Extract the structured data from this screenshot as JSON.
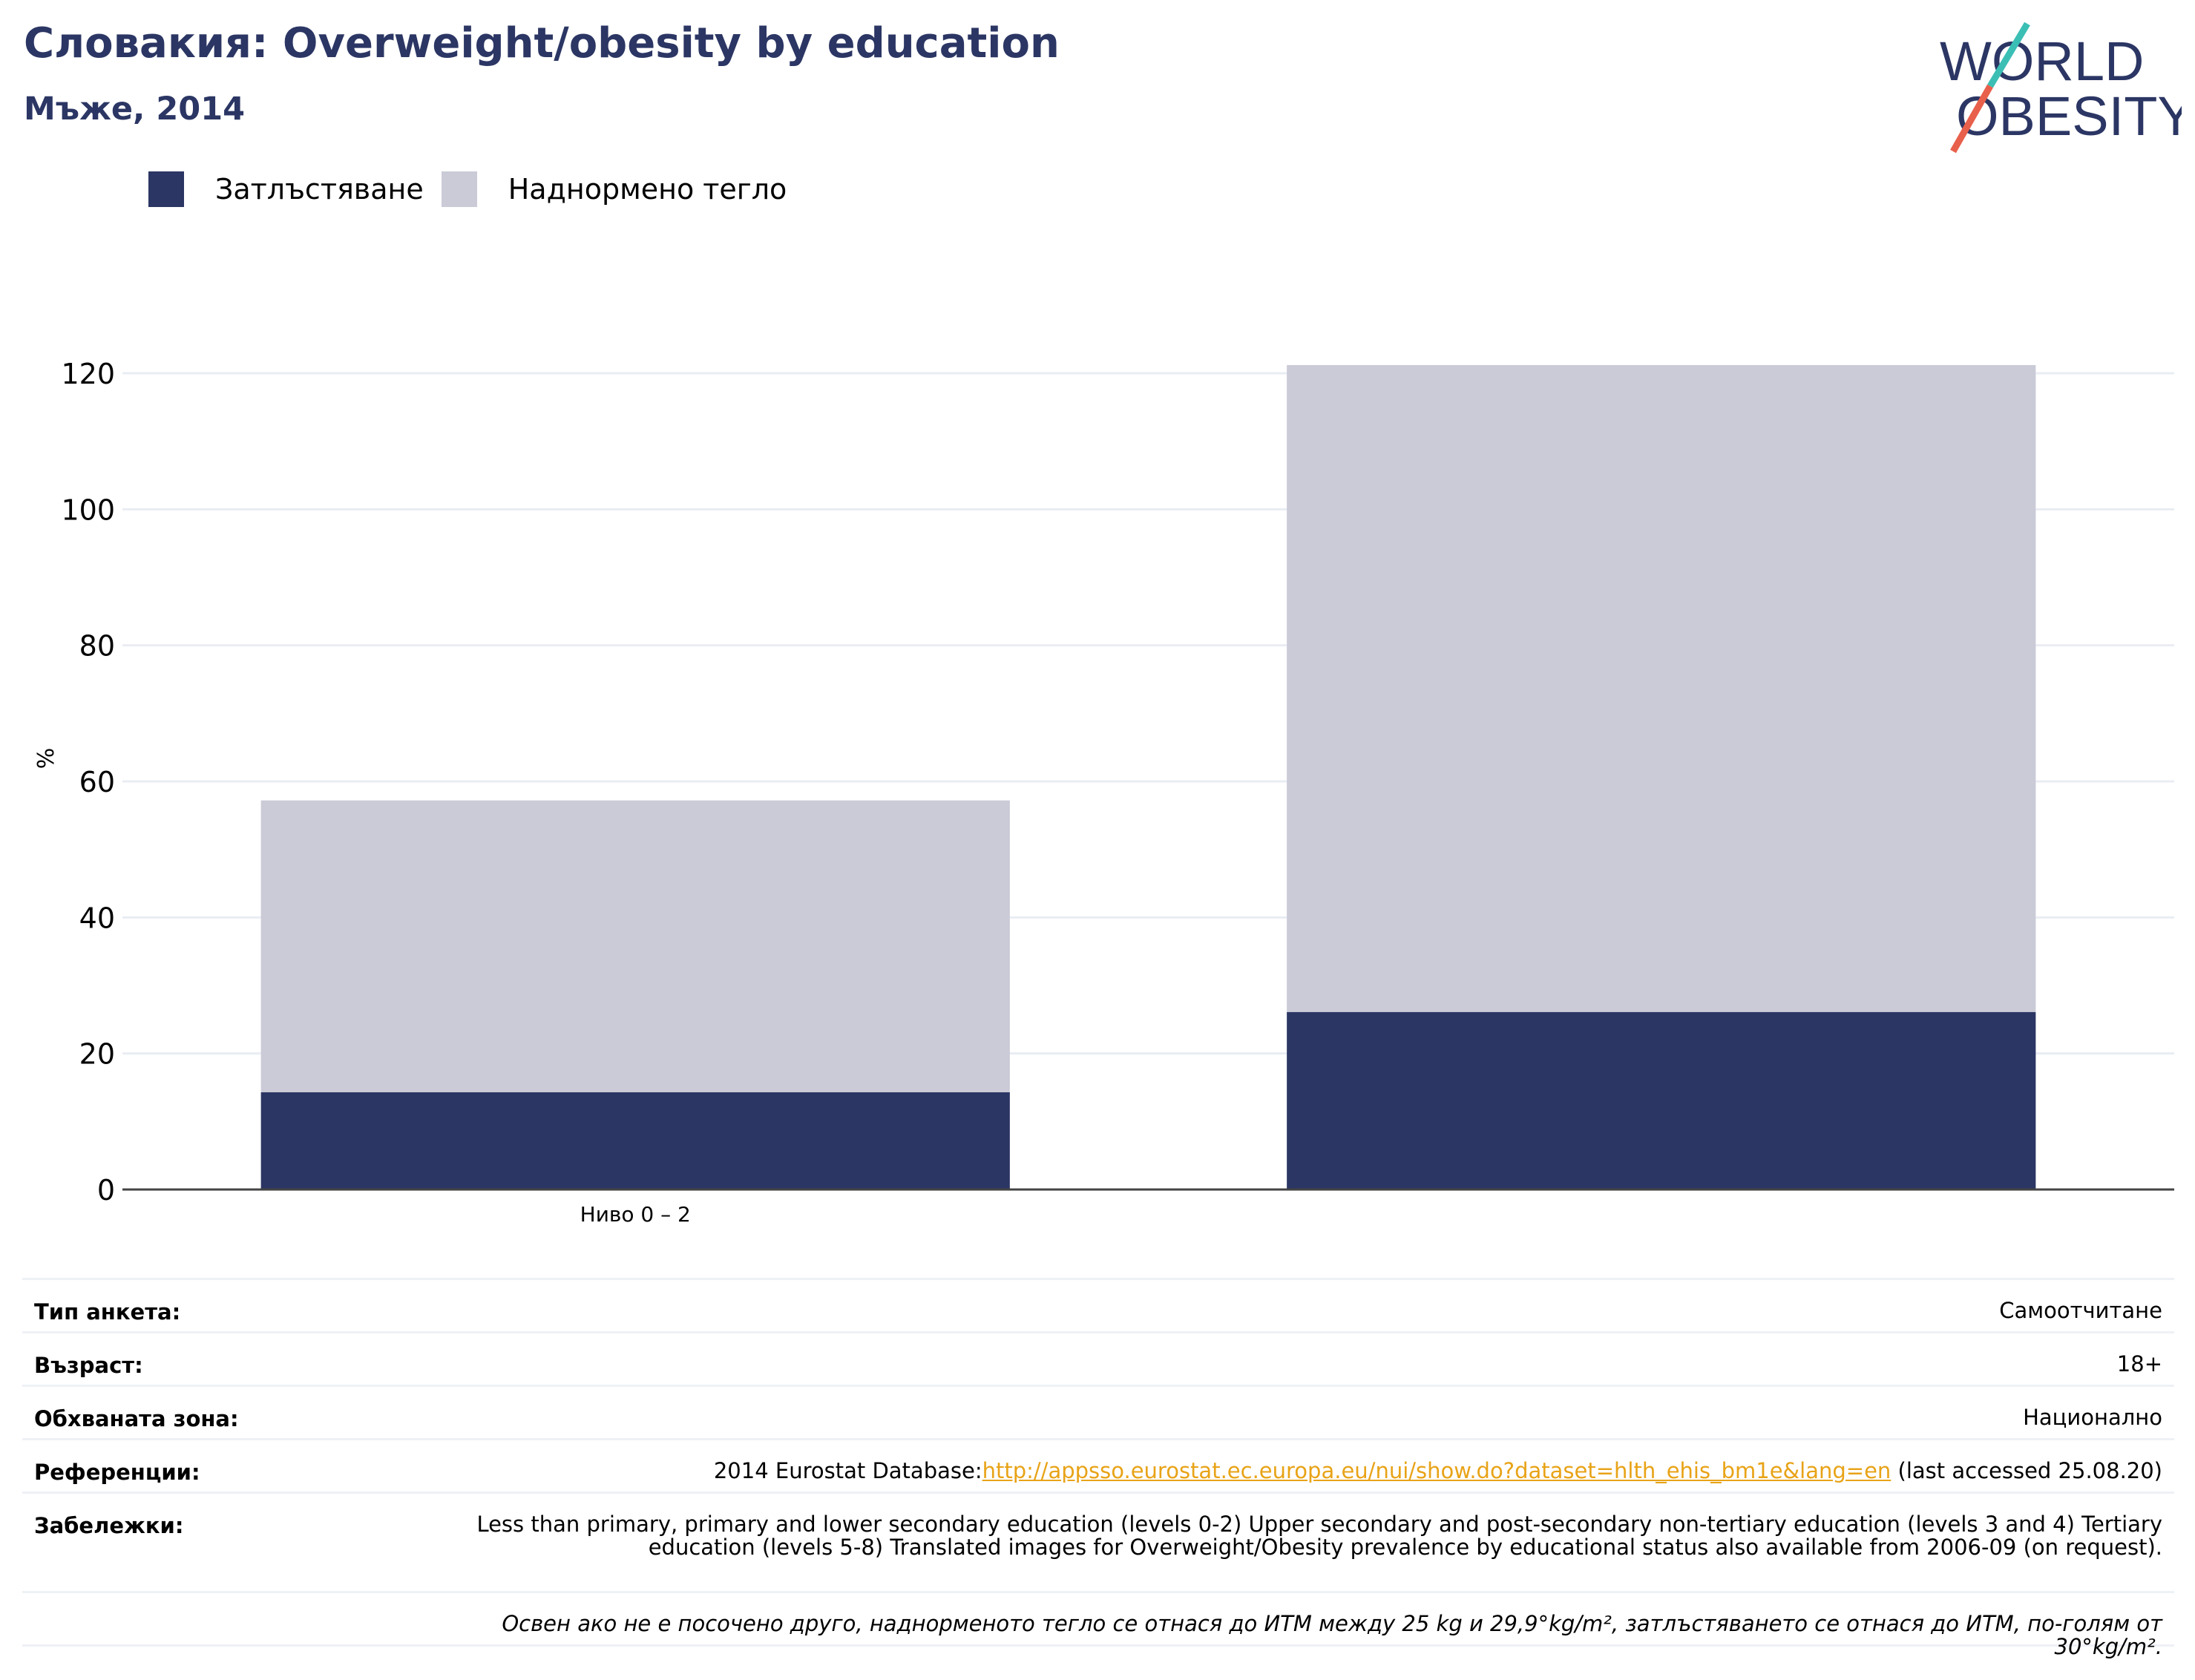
{
  "header": {
    "title": "Словакия: Overweight/obesity by education",
    "subtitle": "Мъже, 2014"
  },
  "logo": {
    "line1": "WORLD",
    "line2": "OBESITY",
    "text": "WORLD OBESITY"
  },
  "colors": {
    "obesity": "#2b3664",
    "overweight": "#cacbd7",
    "title": "#2b3664",
    "accent_teal": "#3bbfb5",
    "accent_red": "#e8604c",
    "link": "#e8a317"
  },
  "legend": [
    {
      "label": "Затлъстяване",
      "color": "#2b3664"
    },
    {
      "label": "Наднормено тегло",
      "color": "#cacbd7"
    }
  ],
  "chart_data": {
    "type": "bar",
    "stacked": true,
    "categories": [
      "Ниво 0 – 2",
      ""
    ],
    "series": [
      {
        "name": "Затлъстяване",
        "values": [
          14.3,
          26.1
        ],
        "color": "#2b3664"
      },
      {
        "name": "Наднормено тегло",
        "values": [
          42.9,
          95.1
        ],
        "color": "#cacbd7"
      }
    ],
    "ylabel": "%",
    "ylim": [
      0,
      120
    ],
    "yticks": [
      0,
      20,
      40,
      60,
      80,
      100,
      120
    ],
    "grid": true
  },
  "meta": {
    "survey_type": {
      "label": "Тип анкета:",
      "value": "Самоотчитане"
    },
    "age": {
      "label": "Възраст:",
      "value": "18+"
    },
    "area": {
      "label": "Обхваната зона:",
      "value": "Национално"
    },
    "references": {
      "label": "Референции:",
      "prefix": "2014 Eurostat Database:",
      "link": "http://appsso.eurostat.ec.europa.eu/nui/show.do?dataset=hlth_ehis_bm1e&lang=en",
      "suffix": " (last accessed 25.08.20)"
    },
    "notes": {
      "label": "Забележки:",
      "value": "Less than primary, primary and lower secondary education (levels 0-2) Upper secondary and post-secondary non-tertiary education (levels 3 and 4) Tertiary education (levels 5-8) Translated images for Overweight/Obesity prevalence by educational status also available from 2006-09 (on request)."
    },
    "footnote": "Освен ако не е посочено друго, наднорменото тегло се отнася до ИТМ между 25 kg и 29,9°kg/m², затлъстяването се отнася до ИТМ, по-голям от 30°kg/m²."
  }
}
